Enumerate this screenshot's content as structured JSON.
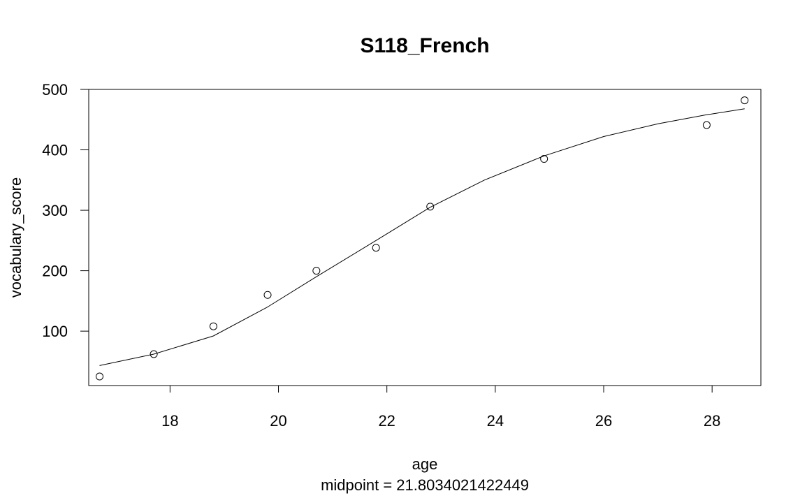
{
  "chart_data": {
    "type": "scatter",
    "title": "S118_French",
    "xlabel": "age",
    "subtitle": "midpoint = 21.8034021422449",
    "ylabel": "vocabulary_score",
    "xlim": [
      16.5,
      28.9
    ],
    "ylim": [
      10,
      500
    ],
    "x_ticks": [
      18,
      20,
      22,
      24,
      26,
      28
    ],
    "y_ticks": [
      100,
      200,
      300,
      400,
      500
    ],
    "grid": false,
    "legend": "none",
    "points": {
      "x": [
        16.7,
        17.7,
        18.8,
        19.8,
        20.7,
        21.8,
        22.8,
        24.9,
        27.9,
        28.6
      ],
      "y": [
        25,
        62,
        108,
        160,
        200,
        238,
        306,
        385,
        441,
        482
      ]
    },
    "fit_line": {
      "x": [
        16.7,
        17.7,
        18.8,
        19.8,
        20.7,
        21.8,
        22.8,
        23.8,
        24.9,
        26.0,
        27.0,
        27.9,
        28.6
      ],
      "y": [
        43,
        62,
        92,
        140,
        190,
        250,
        305,
        350,
        390,
        422,
        443,
        458,
        468
      ]
    }
  }
}
